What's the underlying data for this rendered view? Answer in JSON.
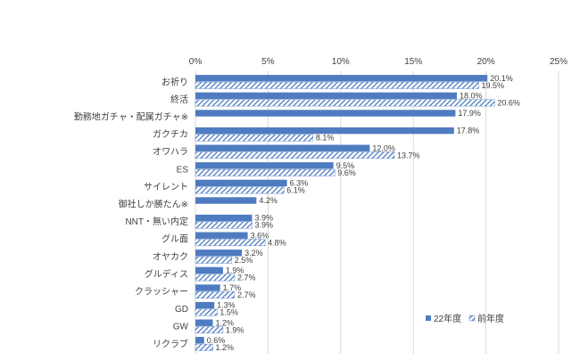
{
  "chart_data": {
    "type": "bar",
    "orientation": "horizontal",
    "xlim": [
      0,
      25
    ],
    "x_ticks": [
      "0%",
      "5%",
      "10%",
      "15%",
      "20%",
      "25%"
    ],
    "tick_values": [
      0,
      5,
      10,
      15,
      20,
      25
    ],
    "categories": [
      "お祈り",
      "終活",
      "勤務地ガチャ・配属ガチャ※",
      "ガクチカ",
      "オワハラ",
      "ES",
      "サイレント",
      "御社しか勝たん※",
      "NNT・無い内定",
      "グル面",
      "オヤカク",
      "グルディス",
      "クラッシャー",
      "GD",
      "GW",
      "リクラブ"
    ],
    "series": [
      {
        "name": "22年度",
        "style": "solid",
        "color": "#4f7cc0",
        "values": [
          20.1,
          18.0,
          17.9,
          17.8,
          12.0,
          9.5,
          6.3,
          4.2,
          3.9,
          3.6,
          3.2,
          1.9,
          1.7,
          1.3,
          1.2,
          0.6
        ],
        "labels": [
          "20.1%",
          "18.0%",
          "17.9%",
          "17.8%",
          "12.0%",
          "9.5%",
          "6.3%",
          "4.2%",
          "3.9%",
          "3.6%",
          "3.2%",
          "1.9%",
          "1.7%",
          "1.3%",
          "1.2%",
          "0.6%"
        ]
      },
      {
        "name": "前年度",
        "style": "hatched",
        "color": "#4f7cc0",
        "values": [
          19.5,
          20.6,
          null,
          8.1,
          13.7,
          9.6,
          6.1,
          null,
          3.9,
          4.8,
          2.5,
          2.7,
          2.7,
          1.5,
          1.9,
          1.2
        ],
        "labels": [
          "19.5%",
          "20.6%",
          null,
          "8.1%",
          "13.7%",
          "9.6%",
          "6.1%",
          null,
          "3.9%",
          "4.8%",
          "2.5%",
          "2.7%",
          "2.7%",
          "1.5%",
          "1.9%",
          "1.2%"
        ]
      }
    ],
    "legend": [
      "22年度",
      "前年度"
    ],
    "legend_position": "bottom-right",
    "grid": true,
    "title": "",
    "xlabel": "",
    "ylabel": ""
  }
}
